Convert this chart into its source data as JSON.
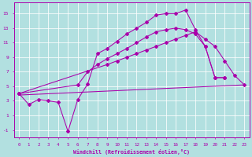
{
  "xlabel": "Windchill (Refroidissement éolien,°C)",
  "background_color": "#b2e0e0",
  "line_color": "#aa00aa",
  "xlim": [
    -0.5,
    23.5
  ],
  "ylim": [
    -2.0,
    16.5
  ],
  "x_ticks": [
    0,
    1,
    2,
    3,
    4,
    5,
    6,
    7,
    8,
    9,
    10,
    11,
    12,
    13,
    14,
    15,
    16,
    17,
    18,
    19,
    20,
    21,
    22,
    23
  ],
  "y_ticks": [
    -1,
    1,
    3,
    5,
    7,
    9,
    11,
    13,
    15
  ],
  "line1_x": [
    0,
    1,
    2,
    3,
    4,
    5,
    6,
    7,
    8,
    9,
    10,
    11,
    12,
    13,
    14,
    15,
    16,
    17,
    18,
    19,
    20,
    21
  ],
  "line1_y": [
    4.0,
    2.5,
    3.2,
    3.0,
    2.8,
    -1.2,
    3.2,
    5.3,
    9.5,
    10.2,
    11.2,
    12.2,
    13.0,
    13.8,
    14.8,
    15.0,
    15.0,
    15.5,
    12.8,
    10.5,
    6.2,
    6.2
  ],
  "line2_x": [
    0,
    6,
    7,
    8,
    9,
    10,
    11,
    12,
    13,
    14,
    15,
    16,
    17,
    18,
    19,
    20,
    21
  ],
  "line2_y": [
    4.0,
    5.2,
    7.0,
    8.0,
    8.8,
    9.5,
    10.2,
    11.0,
    11.8,
    12.5,
    12.8,
    13.0,
    12.8,
    12.2,
    10.5,
    6.2,
    6.2
  ],
  "line3_x": [
    0,
    23
  ],
  "line3_y": [
    3.8,
    5.2
  ],
  "line4_x": [
    0,
    9,
    10,
    11,
    12,
    13,
    14,
    15,
    16,
    17,
    18,
    19,
    20,
    21,
    22,
    23
  ],
  "line4_y": [
    4.0,
    8.0,
    8.5,
    9.0,
    9.5,
    10.0,
    10.5,
    11.0,
    11.5,
    12.0,
    12.5,
    11.5,
    10.5,
    8.5,
    6.5,
    5.2
  ]
}
